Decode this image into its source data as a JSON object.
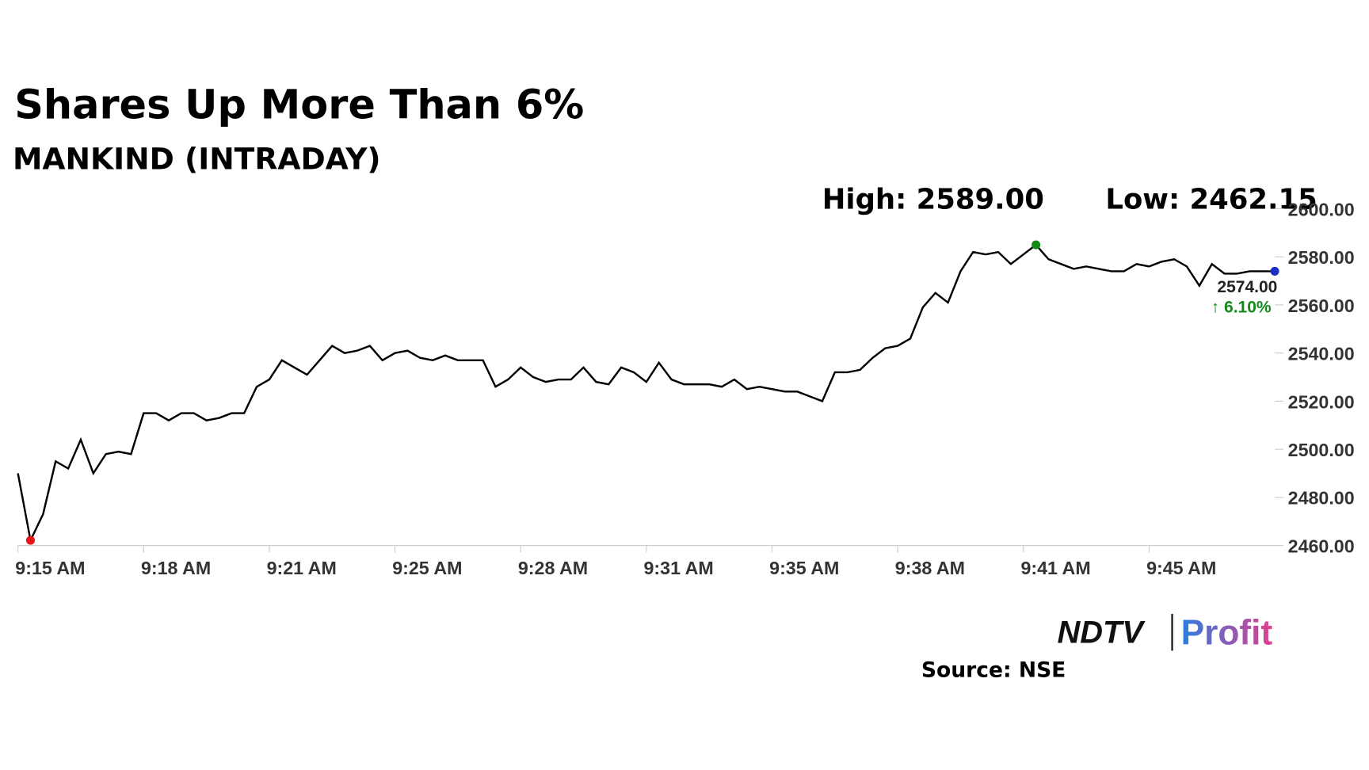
{
  "chart_data": {
    "type": "line",
    "title": "Shares Up More Than 6%",
    "subtitle": "MANKIND (INTRADAY)",
    "high_text": "High: 2589.00",
    "low_text": "Low: 2462.15",
    "last_label": "2574.00",
    "change_label": "↑ 6.10%",
    "categories": [
      "9:15 AM",
      null,
      null,
      null,
      null,
      null,
      null,
      null,
      null,
      null,
      "9:18 AM",
      null,
      null,
      null,
      null,
      null,
      null,
      null,
      null,
      null,
      "9:21 AM",
      null,
      null,
      null,
      null,
      null,
      null,
      null,
      null,
      null,
      "9:25 AM",
      null,
      null,
      null,
      null,
      null,
      null,
      null,
      null,
      null,
      "9:28 AM",
      null,
      null,
      null,
      null,
      null,
      null,
      null,
      null,
      null,
      "9:31 AM",
      null,
      null,
      null,
      null,
      null,
      null,
      null,
      null,
      null,
      "9:35 AM",
      null,
      null,
      null,
      null,
      null,
      null,
      null,
      null,
      null,
      "9:38 AM",
      null,
      null,
      null,
      null,
      null,
      null,
      null,
      null,
      null,
      "9:41 AM",
      null,
      null,
      null,
      null,
      null,
      null,
      null,
      null,
      null,
      "9:45 AM",
      null,
      null,
      null,
      null,
      null,
      null,
      null,
      null,
      null,
      null
    ],
    "series": [
      {
        "name": "MANKIND",
        "color": "#000000",
        "values": [
          2490,
          2462.15,
          2473,
          2495,
          2492,
          2504,
          2490,
          2498,
          2499,
          2498,
          2515,
          2515,
          2512,
          2515,
          2515,
          2512,
          2513,
          2515,
          2515,
          2526,
          2529,
          2537,
          2534,
          2531,
          2537,
          2543,
          2540,
          2541,
          2543,
          2537,
          2540,
          2541,
          2538,
          2537,
          2539,
          2537,
          2537,
          2537,
          2526,
          2529,
          2534,
          2530,
          2528,
          2529,
          2529,
          2534,
          2528,
          2527,
          2534,
          2532,
          2528,
          2536,
          2529,
          2527,
          2527,
          2527,
          2526,
          2529,
          2525,
          2526,
          2525,
          2524,
          2524,
          2522,
          2520,
          2532,
          2532,
          2533,
          2538,
          2542,
          2543,
          2546,
          2559,
          2565,
          2561,
          2574,
          2582,
          2581,
          2582,
          2577,
          2581,
          2585,
          2579,
          2577,
          2575,
          2576,
          2575,
          2574,
          2574,
          2577,
          2576,
          2578,
          2579,
          2576,
          2568,
          2577,
          2573,
          2573,
          2574,
          2574,
          2574
        ]
      }
    ],
    "ylim": [
      2460,
      2600
    ],
    "yticks": [
      {
        "value": 2460,
        "label": "2460.00"
      },
      {
        "value": 2480,
        "label": "2480.00"
      },
      {
        "value": 2500,
        "label": "2500.00"
      },
      {
        "value": 2520,
        "label": "2520.00"
      },
      {
        "value": 2540,
        "label": "2540.00"
      },
      {
        "value": 2560,
        "label": "2560.00"
      },
      {
        "value": 2580,
        "label": "2580.00"
      },
      {
        "value": 2600,
        "label": "2600.00"
      }
    ],
    "low_color": "#e8141b",
    "high_color": "#138a1a",
    "last_color": "#1a2fc4",
    "change_color": "#138a1a",
    "logo": {
      "left": "NDTV",
      "right": "Profit"
    },
    "source": "Source: NSE"
  }
}
